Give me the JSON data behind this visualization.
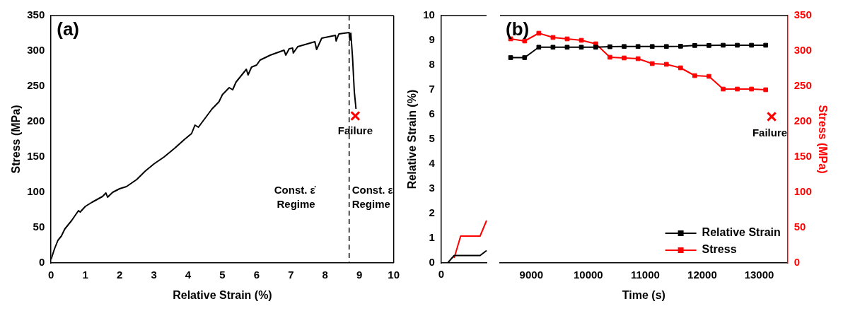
{
  "chart_data": [
    {
      "type": "line",
      "xlabel": "Relative Strain (%)",
      "ylabel": "Stress (MPa)",
      "xlim": [
        0,
        10
      ],
      "xticks": [
        0,
        1,
        2,
        3,
        4,
        5,
        6,
        7,
        8,
        9,
        10
      ],
      "ylim": [
        0,
        350
      ],
      "yticks": [
        0,
        50,
        100,
        150,
        200,
        250,
        300,
        350
      ],
      "series": [
        {
          "color": "#000000",
          "marker": "none",
          "x": [
            0,
            0.1,
            0.2,
            0.3,
            0.4,
            0.6,
            0.8,
            0.85,
            1.0,
            1.2,
            1.5,
            1.6,
            1.65,
            1.8,
            2.0,
            2.2,
            2.5,
            2.75,
            3.0,
            3.3,
            3.6,
            3.9,
            4.1,
            4.2,
            4.3,
            4.5,
            4.7,
            4.9,
            5.0,
            5.2,
            5.3,
            5.4,
            5.6,
            5.7,
            5.75,
            5.85,
            6.0,
            6.1,
            6.4,
            6.8,
            6.85,
            6.95,
            7.05,
            7.07,
            7.2,
            7.7,
            7.75,
            7.9,
            8.3,
            8.32,
            8.4,
            8.7,
            8.72,
            8.75,
            8.8,
            8.85,
            8.9
          ],
          "values": [
            5,
            20,
            32,
            38,
            48,
            60,
            74,
            72,
            80,
            86,
            94,
            99,
            93,
            100,
            105,
            108,
            118,
            130,
            140,
            150,
            162,
            175,
            183,
            195,
            192,
            205,
            218,
            228,
            238,
            248,
            245,
            256,
            268,
            274,
            266,
            277,
            280,
            287,
            294,
            301,
            294,
            303,
            304,
            297,
            306,
            313,
            302,
            318,
            322,
            314,
            324,
            326,
            315,
            325,
            290,
            243,
            218
          ]
        },
        {
          "type": "scatter",
          "color": "#ff0000",
          "marker": "cross",
          "x": [
            8.88
          ],
          "values": [
            208
          ]
        }
      ],
      "ref_lines": [
        {
          "axis": "x",
          "value": 8.7,
          "line_style": "dashed",
          "color": "#000000"
        }
      ],
      "annotations": [
        "(a)",
        {
          "text": "Failure",
          "x": 8.88,
          "y": 208
        },
        "Const. ε̇\nRegime",
        "Const. ε\nRegime"
      ]
    },
    {
      "type": "line",
      "categories": [
        null,
        null,
        null,
        null,
        null,
        null,
        null,
        null
      ],
      "ylabel": "Relative Strain (%)",
      "ylim": [
        0,
        10
      ],
      "yticks": [
        0,
        1,
        2,
        3,
        4,
        5,
        6,
        7,
        8,
        9,
        10
      ],
      "y2lim": [
        0,
        350
      ],
      "tick_labels": "y",
      "annotations": [
        "0"
      ],
      "series": [
        {
          "color": "#000000",
          "marker": "none",
          "values": [
            0,
            0,
            0.3,
            0.3,
            0.3,
            0.3,
            0.3,
            0.5
          ]
        },
        {
          "color": "#ff0000",
          "marker": "none",
          "axis": "y2",
          "values": [
            null,
            null,
            7,
            38,
            38,
            38,
            38,
            60
          ]
        }
      ]
    },
    {
      "type": "line",
      "xlabel": "Time (s)",
      "y2label": "Stress (MPa)",
      "xlim": [
        8450,
        13500
      ],
      "xticks": [
        9000,
        10000,
        11000,
        12000,
        13000
      ],
      "ylim": [
        0,
        10
      ],
      "y2lim": [
        0,
        350
      ],
      "y2ticks": [
        0,
        50,
        100,
        150,
        200,
        250,
        300,
        350
      ],
      "legend": "bottom right",
      "series": [
        {
          "name": "Relative Strain",
          "color": "#000000",
          "marker": "square",
          "x": [
            8637,
            8882,
            9131,
            9380,
            9629,
            9878,
            10131,
            10380,
            10629,
            10873,
            11122,
            11371,
            11620,
            11869,
            12118,
            12367,
            12616,
            12865,
            13114
          ],
          "values": [
            8.3,
            8.3,
            8.72,
            8.72,
            8.72,
            8.72,
            8.72,
            8.74,
            8.75,
            8.75,
            8.75,
            8.75,
            8.76,
            8.79,
            8.79,
            8.8,
            8.8,
            8.8,
            8.8
          ]
        },
        {
          "name": "Stress",
          "color": "#ff0000",
          "marker": "square",
          "axis": "y2",
          "x": [
            8637,
            8882,
            9131,
            9380,
            9629,
            9878,
            10131,
            10380,
            10629,
            10873,
            11122,
            11371,
            11620,
            11869,
            12118,
            12367,
            12616,
            12865,
            13114
          ],
          "values": [
            317,
            314,
            325,
            319,
            317,
            315,
            310,
            291,
            290,
            289,
            282,
            281,
            276,
            265,
            264,
            246,
            246,
            246,
            245
          ]
        },
        {
          "type": "scatter",
          "color": "#ff0000",
          "marker": "cross",
          "axis": "y2",
          "x": [
            13219
          ],
          "values": [
            207
          ]
        }
      ],
      "annotations": [
        "(b)",
        "Failure"
      ]
    }
  ]
}
